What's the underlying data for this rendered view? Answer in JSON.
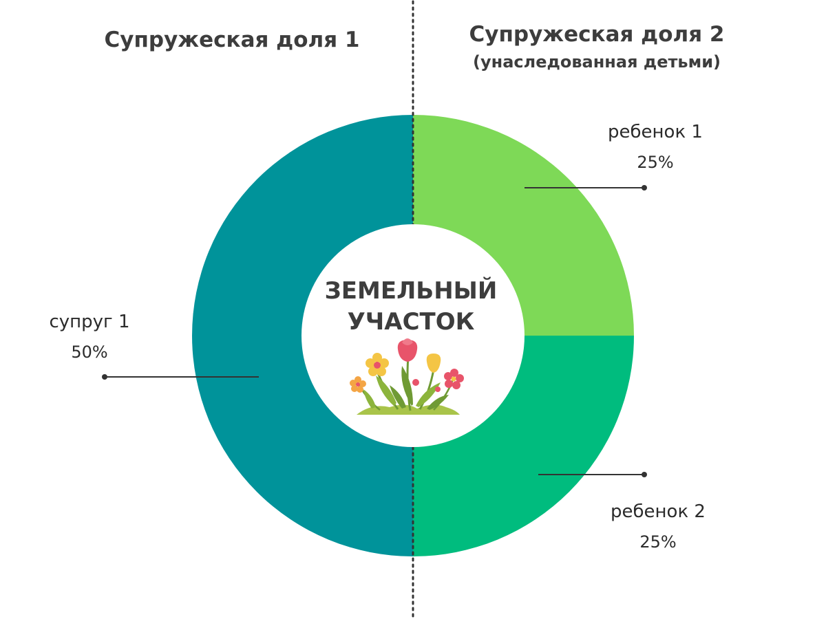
{
  "headings": {
    "left": "Супружеская доля 1",
    "right": "Супружеская доля 2",
    "right_sub": "(унаследованная детьми)"
  },
  "center": {
    "line1": "ЗЕМЕЛЬНЫЙ",
    "line2": "УЧАСТОК",
    "icon": "flowers-icon"
  },
  "chart_data": {
    "type": "pie",
    "title": "",
    "slices": [
      {
        "label": "ребенок 1",
        "value": 25,
        "value_label": "25%",
        "color": "#7ed957"
      },
      {
        "label": "ребенок 2",
        "value": 25,
        "value_label": "25%",
        "color": "#00bc7e"
      },
      {
        "label": "супруг 1",
        "value": 50,
        "value_label": "50%",
        "color": "#00939a"
      }
    ]
  },
  "colors": {
    "text": "#3d3d3d",
    "divider": "#333333",
    "leader": "#333333"
  }
}
